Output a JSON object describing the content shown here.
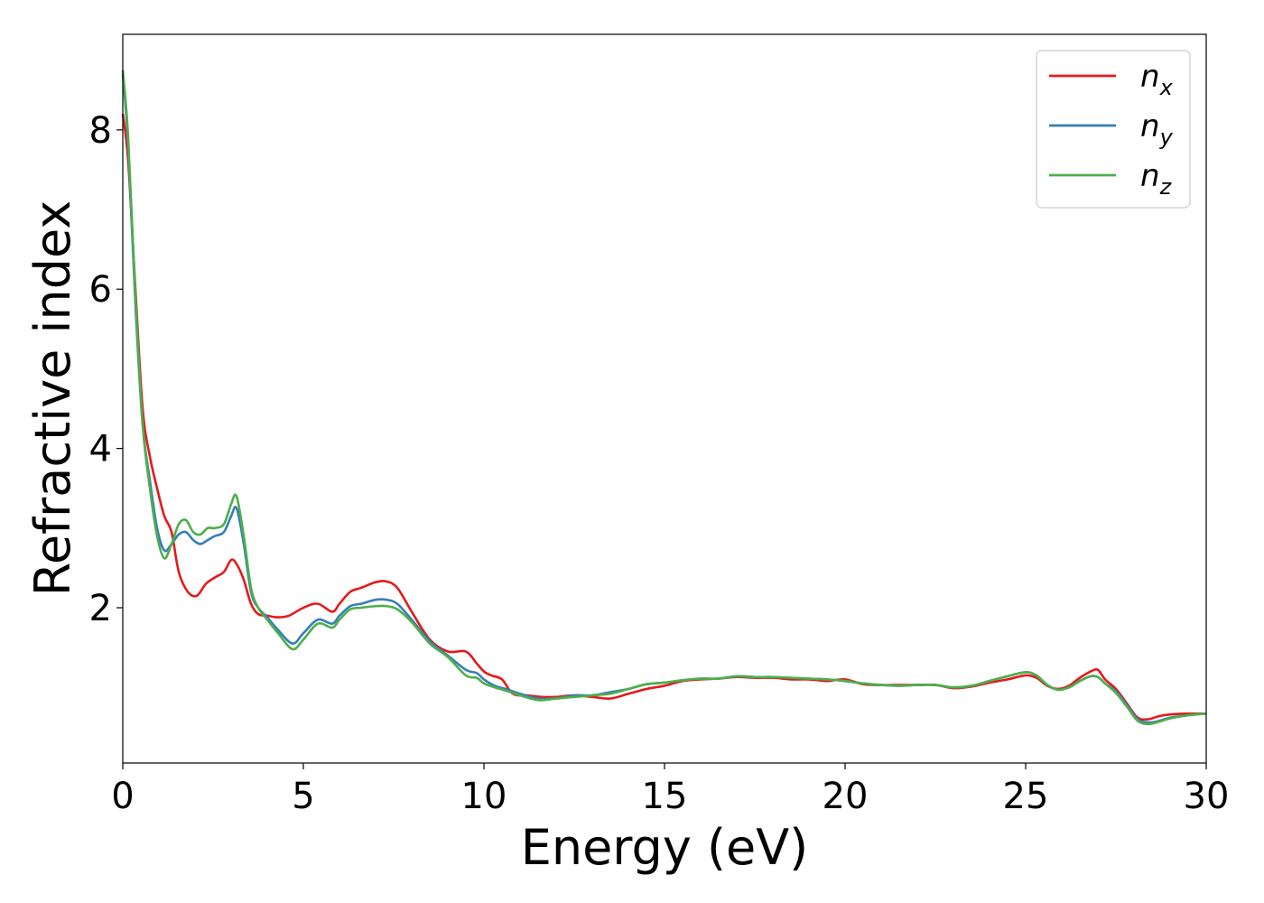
{
  "chart_data": {
    "type": "line",
    "xlabel": "Energy (eV)",
    "ylabel": "Refractive index",
    "xlim": [
      0,
      30
    ],
    "ylim": [
      0.05,
      9.2
    ],
    "x_ticks": [
      0,
      5,
      10,
      15,
      20,
      25,
      30
    ],
    "y_ticks": [
      2,
      4,
      6,
      8
    ],
    "grid": false,
    "legend": "top-right",
    "series": [
      {
        "name": "n",
        "subscript": "x",
        "color": "#e41a1c",
        "x": [
          0,
          0.15,
          0.35,
          0.55,
          0.75,
          0.95,
          1.15,
          1.35,
          1.55,
          1.8,
          2.05,
          2.3,
          2.55,
          2.8,
          3.0,
          3.15,
          3.35,
          3.55,
          3.75,
          4.0,
          4.3,
          4.6,
          5.0,
          5.4,
          5.8,
          6.0,
          6.3,
          6.6,
          7.0,
          7.3,
          7.6,
          8.0,
          8.5,
          9.0,
          9.5,
          9.8,
          10.0,
          10.2,
          10.5,
          10.8,
          11.2,
          11.6,
          12.0,
          12.5,
          13.0,
          13.5,
          14.0,
          14.5,
          15.0,
          15.5,
          16.0,
          16.5,
          17.0,
          17.5,
          18.0,
          18.5,
          19.0,
          19.5,
          20.0,
          20.5,
          21.0,
          21.5,
          22.0,
          22.5,
          23.0,
          23.5,
          24.0,
          24.5,
          25.0,
          25.3,
          25.6,
          25.9,
          26.2,
          26.5,
          26.8,
          27.0,
          27.2,
          27.5,
          27.8,
          28.1,
          28.4,
          28.7,
          29.0,
          29.5,
          30.0
        ],
        "y": [
          8.2,
          7.6,
          6.0,
          4.5,
          3.9,
          3.5,
          3.15,
          2.95,
          2.45,
          2.2,
          2.15,
          2.3,
          2.38,
          2.45,
          2.6,
          2.55,
          2.35,
          2.05,
          1.92,
          1.9,
          1.88,
          1.9,
          2.0,
          2.05,
          1.95,
          2.05,
          2.2,
          2.25,
          2.32,
          2.33,
          2.25,
          1.95,
          1.6,
          1.45,
          1.45,
          1.3,
          1.2,
          1.15,
          1.1,
          0.92,
          0.9,
          0.88,
          0.88,
          0.9,
          0.88,
          0.86,
          0.92,
          0.98,
          1.02,
          1.08,
          1.1,
          1.11,
          1.13,
          1.12,
          1.12,
          1.1,
          1.1,
          1.08,
          1.1,
          1.04,
          1.03,
          1.03,
          1.03,
          1.03,
          0.99,
          1.01,
          1.06,
          1.1,
          1.15,
          1.12,
          1.02,
          0.98,
          1.02,
          1.12,
          1.2,
          1.22,
          1.1,
          0.98,
          0.8,
          0.62,
          0.6,
          0.64,
          0.66,
          0.67,
          0.67
        ]
      },
      {
        "name": "n",
        "subscript": "y",
        "color": "#377eb8",
        "x": [
          0,
          0.15,
          0.35,
          0.55,
          0.75,
          0.95,
          1.15,
          1.35,
          1.55,
          1.75,
          1.95,
          2.15,
          2.35,
          2.55,
          2.8,
          3.0,
          3.15,
          3.35,
          3.55,
          3.75,
          4.0,
          4.3,
          4.7,
          5.0,
          5.4,
          5.8,
          6.0,
          6.3,
          6.6,
          7.0,
          7.3,
          7.6,
          8.0,
          8.5,
          9.0,
          9.5,
          9.8,
          10.0,
          10.3,
          10.6,
          11.0,
          11.5,
          12.0,
          12.5,
          13.0,
          13.5,
          14.0,
          14.5,
          15.0,
          15.5,
          16.0,
          16.5,
          17.0,
          17.5,
          18.0,
          18.5,
          19.0,
          19.5,
          20.0,
          20.5,
          21.0,
          21.5,
          22.0,
          22.5,
          23.0,
          23.5,
          24.0,
          24.5,
          25.0,
          25.3,
          25.6,
          25.9,
          26.2,
          26.5,
          26.8,
          27.0,
          27.2,
          27.5,
          27.8,
          28.1,
          28.4,
          28.7,
          29.0,
          29.5,
          30.0
        ],
        "y": [
          8.7,
          7.8,
          5.8,
          4.3,
          3.6,
          3.0,
          2.72,
          2.8,
          2.92,
          2.95,
          2.85,
          2.8,
          2.85,
          2.9,
          2.95,
          3.15,
          3.25,
          2.8,
          2.2,
          2.0,
          1.88,
          1.72,
          1.55,
          1.68,
          1.85,
          1.8,
          1.9,
          2.02,
          2.05,
          2.1,
          2.1,
          2.05,
          1.85,
          1.58,
          1.4,
          1.22,
          1.18,
          1.1,
          1.02,
          0.98,
          0.92,
          0.86,
          0.86,
          0.9,
          0.9,
          0.94,
          0.98,
          1.04,
          1.06,
          1.09,
          1.11,
          1.11,
          1.14,
          1.13,
          1.13,
          1.12,
          1.11,
          1.1,
          1.08,
          1.05,
          1.03,
          1.02,
          1.03,
          1.03,
          1.0,
          1.02,
          1.08,
          1.14,
          1.19,
          1.15,
          1.03,
          0.97,
          1.0,
          1.08,
          1.14,
          1.13,
          1.05,
          0.95,
          0.78,
          0.6,
          0.56,
          0.58,
          0.62,
          0.65,
          0.67
        ]
      },
      {
        "name": "n",
        "subscript": "z",
        "color": "#4daf4a",
        "x": [
          0,
          0.15,
          0.35,
          0.55,
          0.75,
          0.95,
          1.15,
          1.35,
          1.55,
          1.75,
          1.95,
          2.15,
          2.35,
          2.55,
          2.8,
          3.0,
          3.15,
          3.35,
          3.55,
          3.75,
          4.0,
          4.3,
          4.7,
          5.0,
          5.4,
          5.8,
          6.0,
          6.3,
          6.6,
          7.0,
          7.3,
          7.6,
          8.0,
          8.5,
          9.0,
          9.5,
          9.8,
          10.0,
          10.3,
          10.6,
          11.0,
          11.5,
          12.0,
          12.5,
          13.0,
          13.5,
          14.0,
          14.5,
          15.0,
          15.5,
          16.0,
          16.5,
          17.0,
          17.5,
          18.0,
          18.5,
          19.0,
          19.5,
          20.0,
          20.5,
          21.0,
          21.5,
          22.0,
          22.5,
          23.0,
          23.5,
          24.0,
          24.5,
          25.0,
          25.3,
          25.6,
          25.9,
          26.2,
          26.5,
          26.8,
          27.0,
          27.2,
          27.5,
          27.8,
          28.1,
          28.4,
          28.7,
          29.0,
          29.5,
          30.0
        ],
        "y": [
          8.75,
          7.9,
          5.9,
          4.3,
          3.5,
          2.9,
          2.62,
          2.8,
          3.05,
          3.1,
          2.95,
          2.92,
          3.0,
          3.0,
          3.05,
          3.3,
          3.4,
          2.9,
          2.25,
          2.0,
          1.85,
          1.68,
          1.48,
          1.6,
          1.8,
          1.75,
          1.85,
          1.98,
          2.0,
          2.02,
          2.02,
          1.98,
          1.82,
          1.55,
          1.38,
          1.15,
          1.12,
          1.05,
          1.0,
          0.96,
          0.9,
          0.84,
          0.86,
          0.88,
          0.9,
          0.92,
          0.98,
          1.04,
          1.06,
          1.09,
          1.11,
          1.11,
          1.14,
          1.13,
          1.13,
          1.12,
          1.11,
          1.1,
          1.08,
          1.05,
          1.03,
          1.02,
          1.03,
          1.03,
          1.0,
          1.02,
          1.08,
          1.14,
          1.19,
          1.15,
          1.03,
          0.97,
          1.0,
          1.08,
          1.14,
          1.13,
          1.05,
          0.93,
          0.76,
          0.58,
          0.54,
          0.57,
          0.61,
          0.65,
          0.67
        ]
      }
    ]
  }
}
